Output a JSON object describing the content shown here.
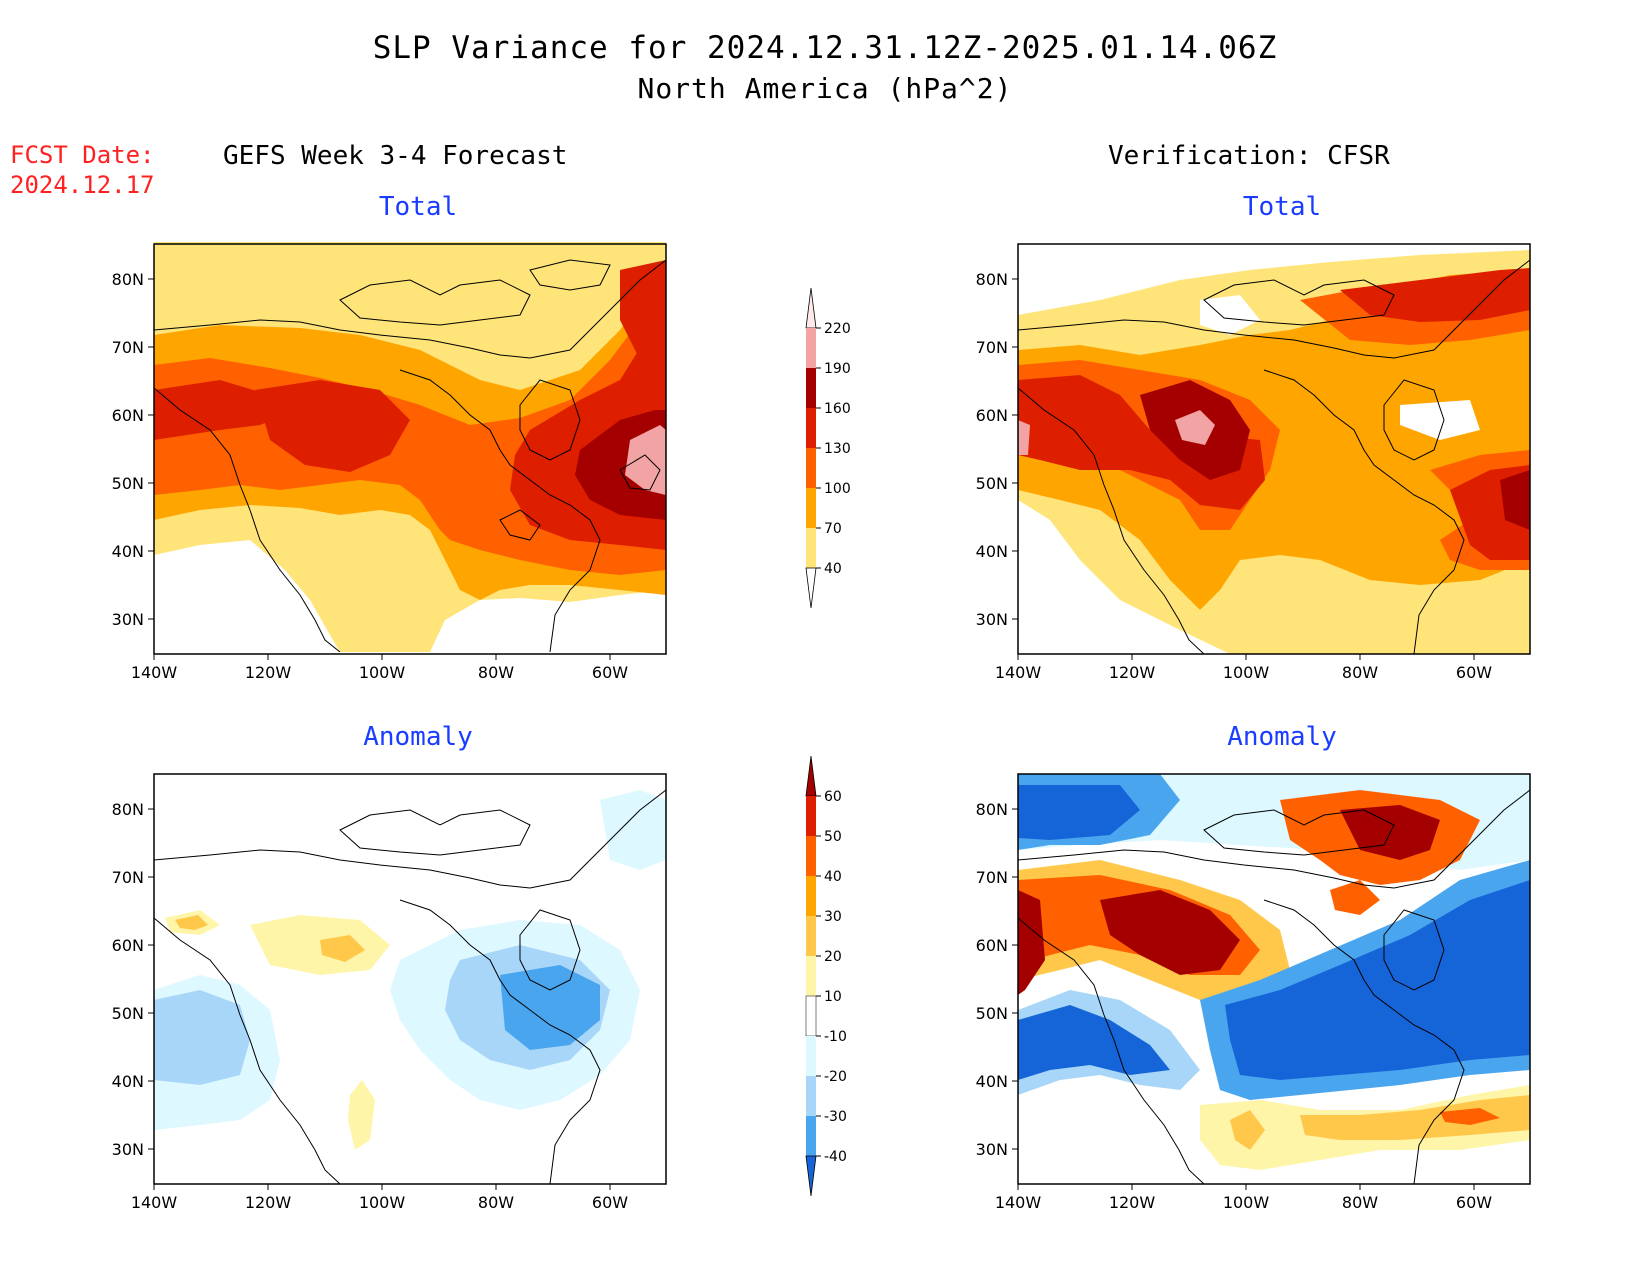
{
  "header": {
    "title_line1": "SLP Variance for 2024.12.31.12Z-2025.01.14.06Z",
    "title_line2": "North America (hPa^2)",
    "fcst_label": "FCST Date:",
    "fcst_date": "2024.12.17",
    "left_column": "GEFS Week 3-4 Forecast",
    "right_column": "Verification: CFSR"
  },
  "panels": {
    "forecast_total": {
      "title": "Total"
    },
    "verif_total": {
      "title": "Total"
    },
    "forecast_anomaly": {
      "title": "Anomaly"
    },
    "verif_anomaly": {
      "title": "Anomaly"
    }
  },
  "axes": {
    "lat_ticks": [
      "80N",
      "70N",
      "60N",
      "50N",
      "40N",
      "30N"
    ],
    "lon_ticks": [
      "140W",
      "120W",
      "100W",
      "80W",
      "60W"
    ]
  },
  "legends": {
    "total": {
      "levels": [
        "220",
        "190",
        "160",
        "130",
        "100",
        "70",
        "40"
      ],
      "colors": [
        "#ffe9e9",
        "#f2a3a3",
        "#a40000",
        "#dd1f00",
        "#ff6000",
        "#ffa500",
        "#ffe47a"
      ]
    },
    "anomaly": {
      "levels": [
        "60",
        "50",
        "40",
        "30",
        "20",
        "10",
        "-10",
        "-20",
        "-30",
        "-40"
      ],
      "colors": [
        "#a40000",
        "#dd1f00",
        "#ff6000",
        "#ffa500",
        "#ffc84a",
        "#fff5a8",
        "#ffffff",
        "#ddf8ff",
        "#a8d6f8",
        "#4aa5ef",
        "#1565d8"
      ]
    }
  },
  "colors": {
    "total_c1": "#ffe47a",
    "total_c2": "#ffa500",
    "total_c3": "#ff6000",
    "total_c4": "#dd1f00",
    "total_c5": "#a40000",
    "total_c6": "#f2a3a3",
    "anom_pos1": "#fff5a8",
    "anom_pos2": "#ffc84a",
    "anom_pos3": "#ffa500",
    "anom_pos4": "#ff6000",
    "anom_pos5": "#dd1f00",
    "anom_pos6": "#a40000",
    "anom_neg1": "#ddf8ff",
    "anom_neg2": "#a8d6f8",
    "anom_neg3": "#4aa5ef",
    "anom_neg4": "#1565d8",
    "title_blue": "#1a3cff",
    "fcst_red": "#ff2020"
  }
}
